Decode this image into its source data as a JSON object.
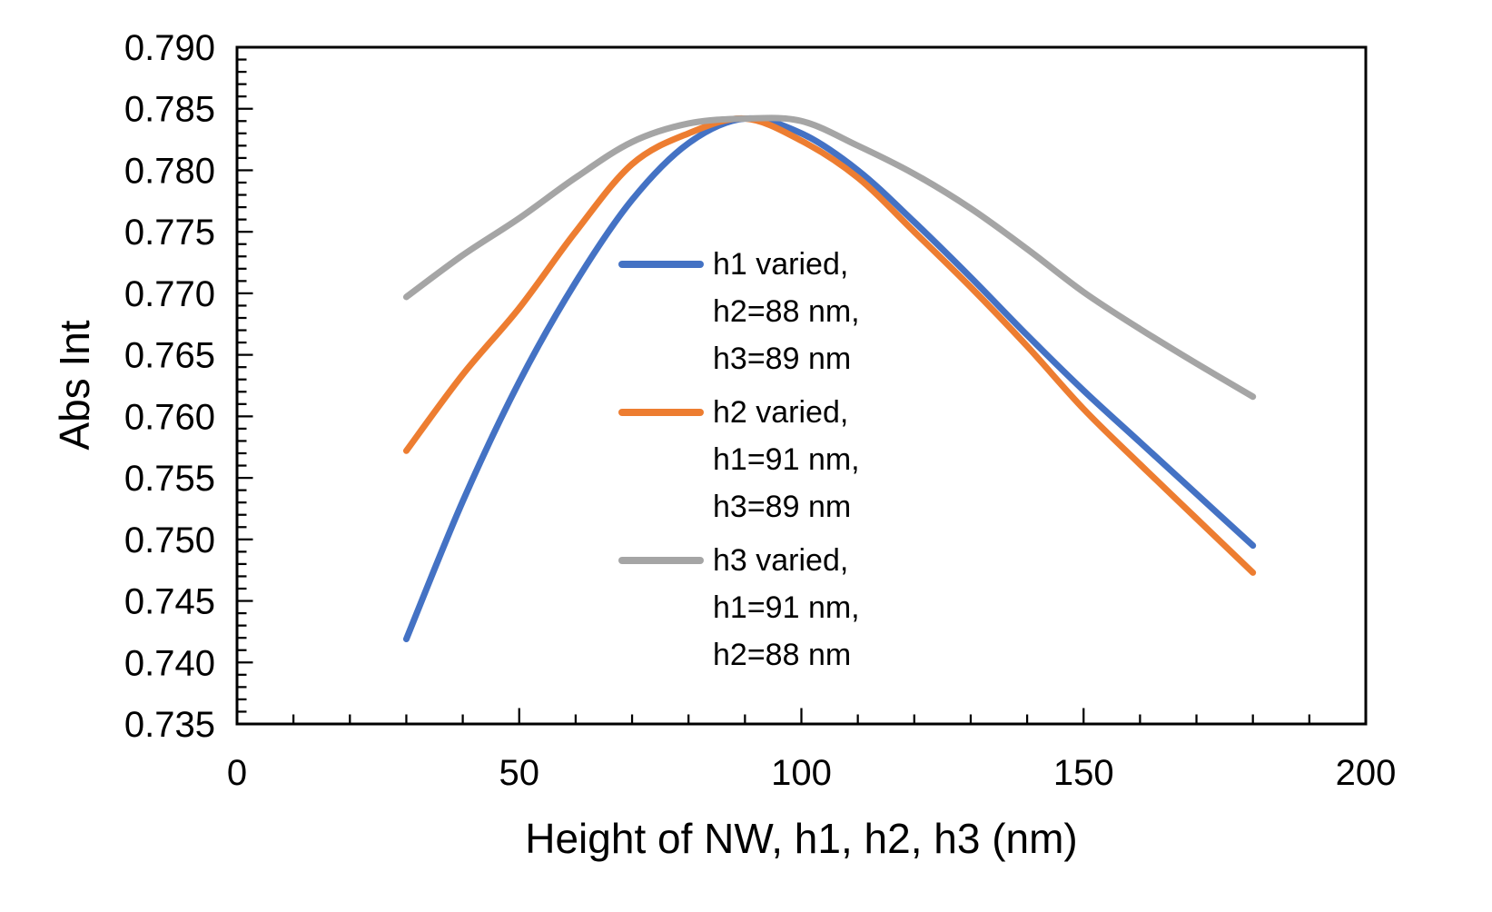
{
  "figure": {
    "background": "#FFFFFF"
  },
  "chart_data": {
    "type": "line",
    "title": "",
    "xlabel": "Height of NW, h1, h2, h3 (nm)",
    "ylabel": "Abs Int",
    "xlim": [
      0,
      200
    ],
    "ylim": [
      0.735,
      0.79
    ],
    "grid": false,
    "axis_color": "#000000",
    "text_color": "#000000",
    "tick_style": "inside",
    "legend_position": "inside-center",
    "x_major_ticks": [
      0,
      50,
      100,
      150,
      200
    ],
    "x_tick_labels": [
      "0",
      "50",
      "100",
      "150",
      "200"
    ],
    "x_minor_tick_step": 10,
    "y_major_ticks": [
      0.735,
      0.74,
      0.745,
      0.75,
      0.755,
      0.76,
      0.765,
      0.77,
      0.775,
      0.78,
      0.785,
      0.79
    ],
    "y_tick_labels": [
      "0.735",
      "0.740",
      "0.745",
      "0.750",
      "0.755",
      "0.760",
      "0.765",
      "0.770",
      "0.775",
      "0.780",
      "0.785",
      "0.790"
    ],
    "y_minor_tick_step": 0.001,
    "x": [
      30,
      40,
      50,
      60,
      70,
      80,
      90,
      100,
      110,
      120,
      130,
      140,
      150,
      160,
      170,
      180
    ],
    "series": [
      {
        "name": "h1 varied, h2=88 nm, h3=89 nm",
        "legend_lines": [
          "h1 varied,",
          "h2=88 nm,",
          "h3=89 nm"
        ],
        "color": "#4472C4",
        "values": [
          0.7419,
          0.7531,
          0.7628,
          0.7709,
          0.7776,
          0.7822,
          0.7842,
          0.783,
          0.78,
          0.7758,
          0.7713,
          0.7666,
          0.7621,
          0.7579,
          0.7537,
          0.7495
        ]
      },
      {
        "name": "h2 varied, h1=91 nm, h3=89 nm",
        "legend_lines": [
          "h2 varied,",
          "h1=91 nm,",
          "h3=89 nm"
        ],
        "color": "#ED7D31",
        "values": [
          0.7572,
          0.7634,
          0.7688,
          0.775,
          0.7805,
          0.783,
          0.7842,
          0.7824,
          0.7794,
          0.775,
          0.7705,
          0.7657,
          0.7606,
          0.7561,
          0.7517,
          0.7473
        ]
      },
      {
        "name": "h3 varied, h1=91 nm, h2=88 nm",
        "legend_lines": [
          "h3 varied,",
          "h1=91 nm,",
          "h2=88 nm"
        ],
        "color": "#A5A5A5",
        "values": [
          0.7697,
          0.7731,
          0.7761,
          0.7794,
          0.7823,
          0.7838,
          0.7842,
          0.784,
          0.782,
          0.7797,
          0.7769,
          0.7736,
          0.7701,
          0.7671,
          0.7643,
          0.7616
        ]
      }
    ]
  }
}
